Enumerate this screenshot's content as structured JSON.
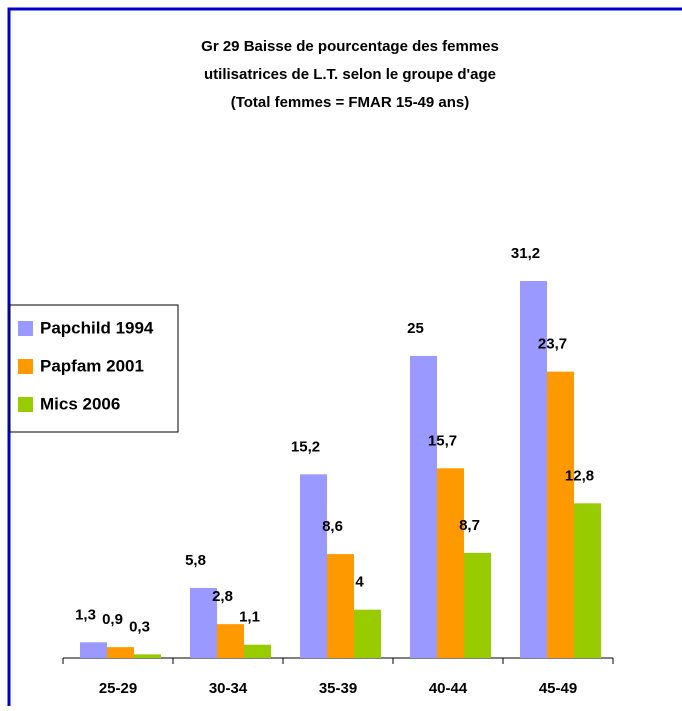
{
  "chart_data": {
    "type": "bar",
    "title": [
      "Gr 29   Baisse de pourcentage des femmes",
      "utilisatrices de L.T. selon le groupe d'age",
      "(Total femmes = FMAR 15-49 ans)"
    ],
    "categories": [
      "25-29",
      "30-34",
      "35-39",
      "40-44",
      "45-49"
    ],
    "series": [
      {
        "name": "Papchild 1994",
        "color": "#9999ff",
        "values": [
          1.3,
          5.8,
          15.2,
          25,
          31.2
        ],
        "value_labels": [
          "1,3",
          "5,8",
          "15,2",
          "25",
          "31,2"
        ]
      },
      {
        "name": "Papfam 2001",
        "color": "#ff9900",
        "values": [
          0.9,
          2.8,
          8.6,
          15.7,
          23.7
        ],
        "value_labels": [
          "0,9",
          "2,8",
          "8,6",
          "15,7",
          "23,7"
        ]
      },
      {
        "name": "Mics 2006",
        "color": "#99cc00",
        "values": [
          0.3,
          1.1,
          4,
          8.7,
          12.8
        ],
        "value_labels": [
          "0,3",
          "1,1",
          "4",
          "8,7",
          "12,8"
        ]
      }
    ],
    "legend": "left"
  }
}
